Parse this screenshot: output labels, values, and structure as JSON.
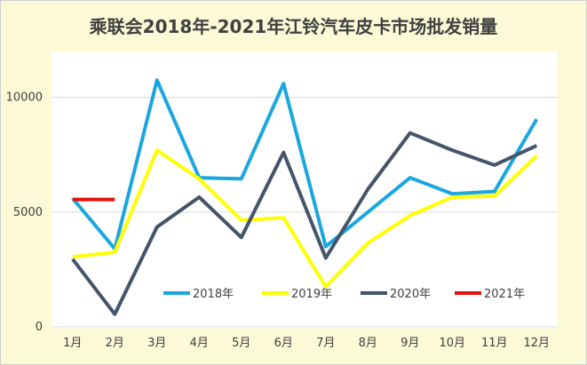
{
  "chart_data": {
    "type": "line",
    "title": "乘联会2018年-2021年江铃汽车皮卡市场批发销量",
    "xlabel": "",
    "ylabel": "",
    "categories": [
      "1月",
      "2月",
      "3月",
      "4月",
      "5月",
      "6月",
      "7月",
      "8月",
      "9月",
      "10月",
      "11月",
      "12月"
    ],
    "yticks": [
      "0",
      "5000",
      "10000"
    ],
    "ylim": [
      0,
      12000
    ],
    "grid": true,
    "legend": "bottom-inside",
    "series": [
      {
        "name": "2018年",
        "color": "#1aa7e0",
        "values": [
          5600,
          3400,
          10750,
          6500,
          6450,
          10600,
          3500,
          5000,
          6500,
          5800,
          5900,
          9050
        ]
      },
      {
        "name": "2019年",
        "color": "#ffff00",
        "values": [
          3050,
          3250,
          7700,
          6450,
          4650,
          4750,
          1750,
          3650,
          4850,
          5650,
          5700,
          7450
        ]
      },
      {
        "name": "2020年",
        "color": "#44546a",
        "values": [
          2950,
          550,
          4350,
          5650,
          3900,
          7600,
          3000,
          6000,
          8450,
          7700,
          7050,
          7900
        ]
      },
      {
        "name": "2021年",
        "color": "#e3120b",
        "values": [
          5550,
          5550,
          null,
          null,
          null,
          null,
          null,
          null,
          null,
          null,
          null,
          null
        ]
      }
    ]
  }
}
